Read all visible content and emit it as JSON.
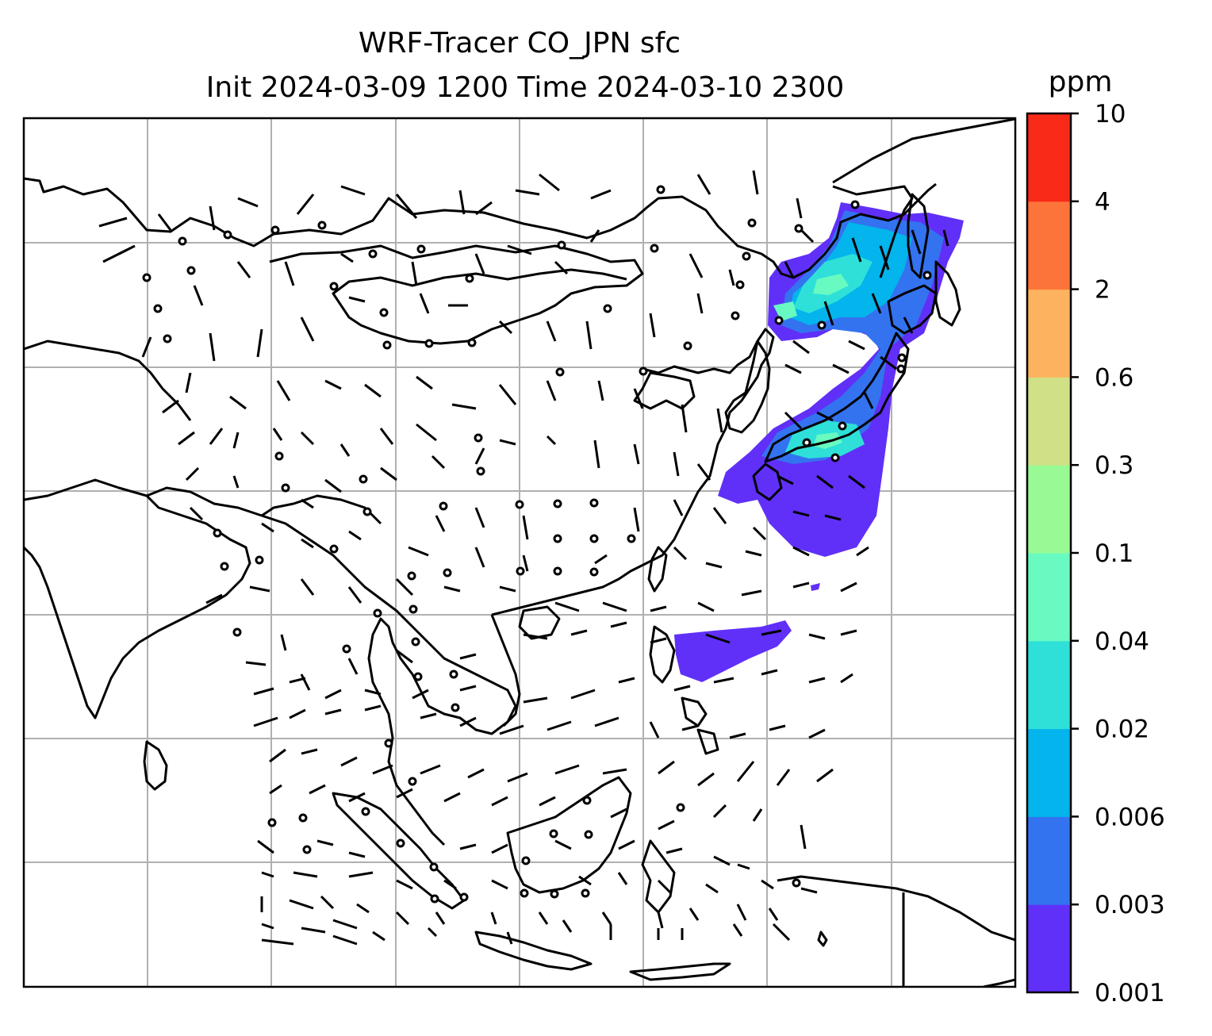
{
  "figure": {
    "title_line1": "WRF-Tracer CO_JPN sfc",
    "title_line2": "Init 2024-03-09 1200 Time 2024-03-10 2300"
  },
  "colorbar": {
    "unit": "ppm",
    "tick_labels": [
      "0.001",
      "0.003",
      "0.006",
      "0.02",
      "0.04",
      "0.1",
      "0.3",
      "0.6",
      "2",
      "4",
      "10"
    ],
    "colors": [
      "#6030f8",
      "#3373f0",
      "#04b4ec",
      "#2ee0d8",
      "#68fac0",
      "#98fa94",
      "#d0e086",
      "#fcb25e",
      "#fc743a",
      "#fa2a18"
    ]
  },
  "map": {
    "grid": true,
    "gridline_color": "#b0b0b0",
    "coastline_color": "#000000",
    "wind_barbs": true,
    "calm_marker": "circle"
  }
}
